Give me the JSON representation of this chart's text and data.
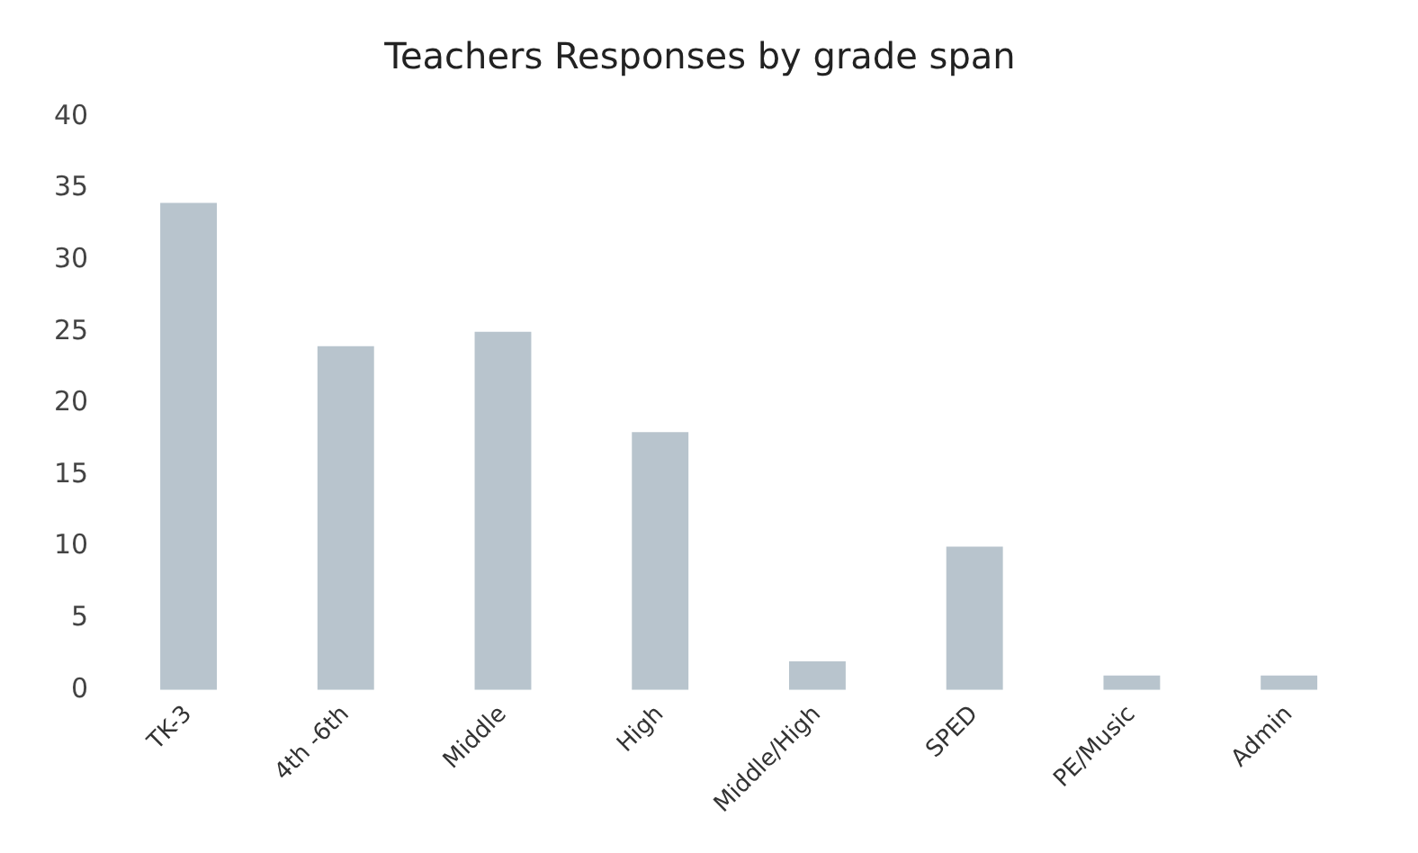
{
  "chart_data": {
    "type": "bar",
    "title": "Teachers Responses by grade span",
    "categories": [
      "TK-3",
      "4th -6th",
      "Middle",
      "High",
      "Middle/High",
      "SPED",
      "PE/Music",
      "Admin"
    ],
    "values": [
      34,
      24,
      25,
      18,
      2,
      10,
      1,
      1
    ],
    "color": "#b8c4cd",
    "ylim": [
      0,
      40
    ],
    "yticks": [
      0,
      5,
      10,
      15,
      20,
      25,
      30,
      35,
      40
    ],
    "grid": false
  }
}
